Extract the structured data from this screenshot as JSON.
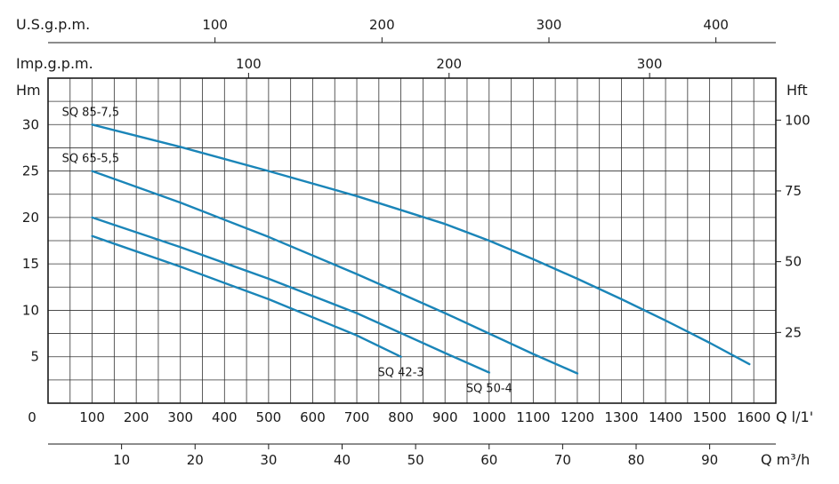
{
  "chart_data": {
    "type": "line",
    "title": "",
    "x_primary": {
      "label": "Q l/1'",
      "ticks": [
        100,
        200,
        300,
        400,
        500,
        600,
        700,
        800,
        900,
        1000,
        1100,
        1200,
        1300,
        1400,
        1500,
        1600
      ],
      "zero_label": "0",
      "range": [
        0,
        1650
      ]
    },
    "x_m3h": {
      "label": "Q m³/h",
      "ticks": [
        10,
        20,
        30,
        40,
        50,
        60,
        70,
        80,
        90
      ]
    },
    "x_us_gpm": {
      "label": "U.S.g.p.m.",
      "ticks": [
        100,
        200,
        300,
        400
      ]
    },
    "x_imp_gpm": {
      "label": "Imp.g.p.m.",
      "ticks": [
        100,
        200,
        300
      ]
    },
    "y_left": {
      "label": "Hm",
      "ticks": [
        5,
        10,
        15,
        20,
        25,
        30
      ],
      "range": [
        0,
        35
      ]
    },
    "y_right": {
      "label": "Hft",
      "ticks": [
        25,
        50,
        75,
        100
      ]
    },
    "grid": true,
    "line_color": "#1a85b8",
    "series": [
      {
        "name": "SQ 85-7,5",
        "label_position": "start",
        "x": [
          100,
          300,
          500,
          700,
          900,
          1000,
          1100,
          1200,
          1300,
          1400,
          1500,
          1590
        ],
        "y": [
          30,
          27.6,
          25,
          22.3,
          19.3,
          17.5,
          15.5,
          13.4,
          11.2,
          8.9,
          6.5,
          4.2
        ]
      },
      {
        "name": "SQ 65-5,5",
        "label_position": "start",
        "x": [
          100,
          300,
          500,
          700,
          900,
          1000,
          1100,
          1200
        ],
        "y": [
          25,
          21.6,
          17.9,
          13.9,
          9.7,
          7.5,
          5.3,
          3.2
        ]
      },
      {
        "name": "SQ 50-4",
        "label_position": "end",
        "x": [
          100,
          300,
          500,
          700,
          900,
          1000
        ],
        "y": [
          20,
          16.8,
          13.4,
          9.7,
          5.4,
          3.3
        ]
      },
      {
        "name": "SQ 42-3",
        "label_position": "end",
        "x": [
          100,
          300,
          500,
          700,
          800
        ],
        "y": [
          18,
          14.7,
          11.2,
          7.3,
          5
        ]
      }
    ]
  }
}
